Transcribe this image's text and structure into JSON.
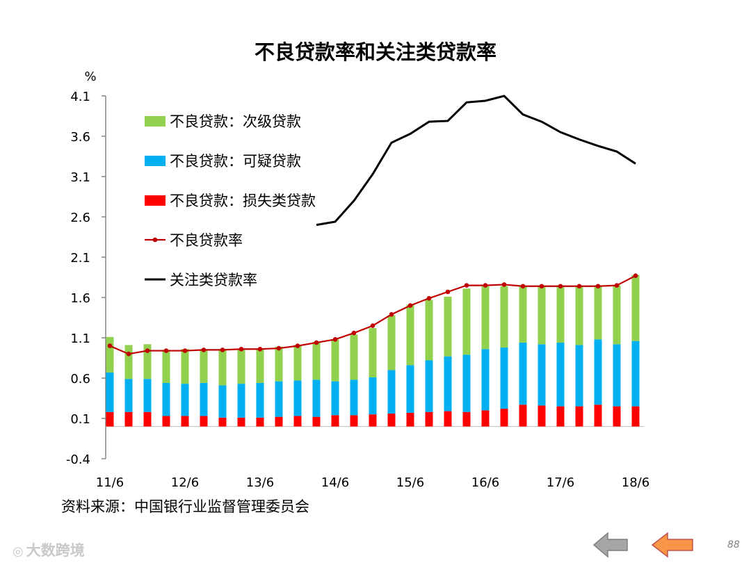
{
  "page": {
    "title": "不良贷款率和关注类贷款率",
    "page_number": "88"
  },
  "source_note": "资料来源：中国银行业监督管理委员会",
  "watermark": "大数跨境",
  "nav": {
    "prev_icon": "arrow-left-gray",
    "next_icon": "arrow-left-orange"
  },
  "colors": {
    "substandard": "#92d050",
    "doubtful": "#00b0f0",
    "loss": "#ff0000",
    "npl_line": "#c00000",
    "special_line": "#000000",
    "prev_arrow": "#a6a6a6",
    "next_arrow": "#f79646"
  },
  "chart_data": {
    "type": "bar",
    "title": "不良贷款率和关注类贷款率",
    "ylabel": "%",
    "ylim": [
      -0.4,
      4.1
    ],
    "yticks": [
      "4.1",
      "3.6",
      "3.1",
      "2.6",
      "2.1",
      "1.6",
      "1.1",
      "0.6",
      "0.1",
      "-0.4"
    ],
    "xtick_labels": [
      "11/6",
      "12/6",
      "13/6",
      "14/6",
      "15/6",
      "16/6",
      "17/6",
      "18/6"
    ],
    "xtick_indices": [
      0,
      4,
      8,
      12,
      16,
      20,
      24,
      28
    ],
    "n_points": 29,
    "stacked": true,
    "series": [
      {
        "name": "不良贷款：次级贷款",
        "kind": "bar",
        "values": [
          0.44,
          0.42,
          0.43,
          0.41,
          0.43,
          0.42,
          0.44,
          0.43,
          0.42,
          0.43,
          0.44,
          0.47,
          0.52,
          0.56,
          0.61,
          0.68,
          0.75,
          0.75,
          0.74,
          0.82,
          0.78,
          0.76,
          0.7,
          0.72,
          0.71,
          0.73,
          0.67,
          0.73,
          0.82
        ]
      },
      {
        "name": "不良贷款：可疑贷款",
        "kind": "bar",
        "values": [
          0.49,
          0.41,
          0.41,
          0.41,
          0.4,
          0.41,
          0.4,
          0.42,
          0.43,
          0.44,
          0.44,
          0.46,
          0.42,
          0.44,
          0.46,
          0.54,
          0.59,
          0.64,
          0.68,
          0.71,
          0.76,
          0.76,
          0.77,
          0.76,
          0.79,
          0.76,
          0.81,
          0.77,
          0.81
        ]
      },
      {
        "name": "不良贷款：损失类贷款",
        "kind": "bar",
        "values": [
          0.18,
          0.18,
          0.18,
          0.13,
          0.13,
          0.13,
          0.11,
          0.11,
          0.11,
          0.12,
          0.13,
          0.12,
          0.14,
          0.14,
          0.15,
          0.16,
          0.17,
          0.18,
          0.19,
          0.18,
          0.2,
          0.22,
          0.27,
          0.26,
          0.25,
          0.25,
          0.27,
          0.25,
          0.25
        ]
      },
      {
        "name": "不良贷款率",
        "kind": "line-marker",
        "values": [
          1.0,
          0.9,
          0.94,
          0.94,
          0.94,
          0.95,
          0.95,
          0.96,
          0.96,
          0.97,
          1.0,
          1.04,
          1.08,
          1.16,
          1.25,
          1.39,
          1.5,
          1.59,
          1.67,
          1.75,
          1.75,
          1.76,
          1.74,
          1.74,
          1.74,
          1.74,
          1.74,
          1.75,
          1.87
        ]
      },
      {
        "name": "关注类贷款率",
        "kind": "line",
        "values": [
          null,
          null,
          null,
          null,
          null,
          null,
          null,
          null,
          null,
          null,
          null,
          2.5,
          2.54,
          2.8,
          3.13,
          3.52,
          3.63,
          3.78,
          3.79,
          4.02,
          4.04,
          4.1,
          3.87,
          3.78,
          3.65,
          3.56,
          3.48,
          3.41,
          3.26
        ]
      }
    ],
    "legend": [
      "不良贷款：次级贷款",
      "不良贷款：可疑贷款",
      "不良贷款：损失类贷款",
      "不良贷款率",
      "关注类贷款率"
    ],
    "legend_position": "top-left inside plot"
  }
}
